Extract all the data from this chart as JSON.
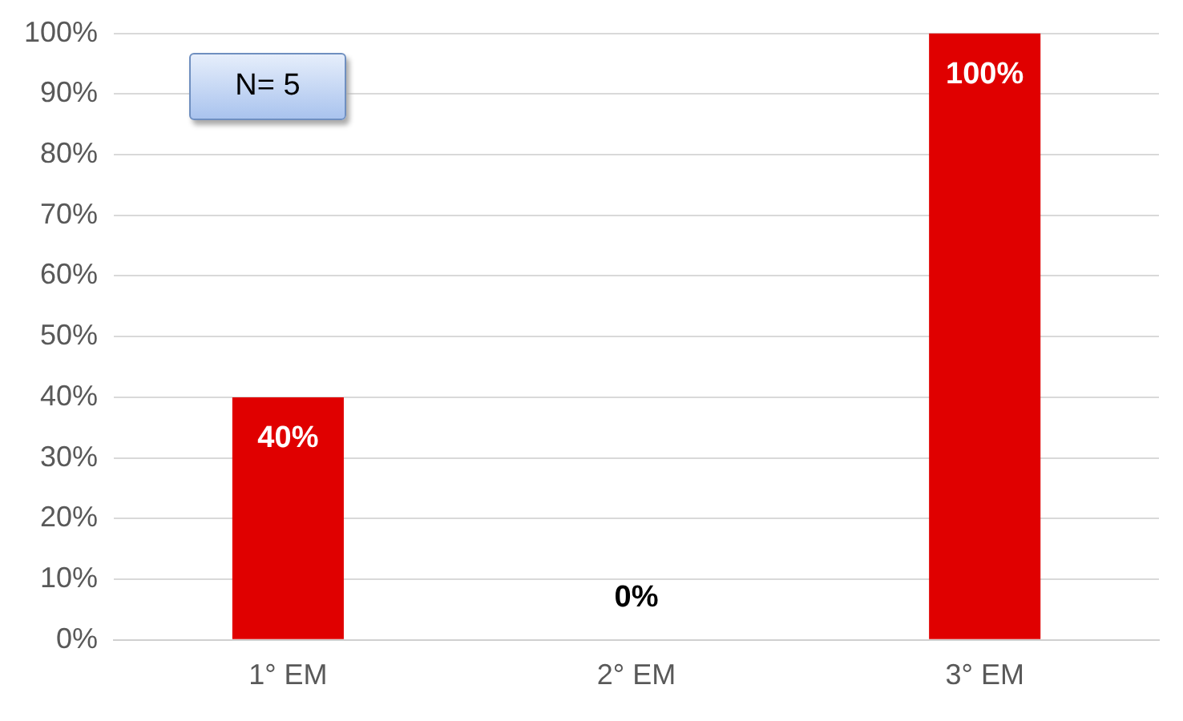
{
  "chart_data": {
    "type": "bar",
    "categories": [
      "1° EM",
      "2° EM",
      "3° EM"
    ],
    "values": [
      40,
      0,
      100
    ],
    "color": "#e00000",
    "value_labels": [
      "40%",
      "0%",
      "100%"
    ],
    "ylim": [
      0,
      100
    ],
    "yticks": [
      {
        "value": 0,
        "label": "0%"
      },
      {
        "value": 10,
        "label": "10%"
      },
      {
        "value": 20,
        "label": "20%"
      },
      {
        "value": 30,
        "label": "30%"
      },
      {
        "value": 40,
        "label": "40%"
      },
      {
        "value": 50,
        "label": "50%"
      },
      {
        "value": 60,
        "label": "60%"
      },
      {
        "value": 70,
        "label": "70%"
      },
      {
        "value": 80,
        "label": "80%"
      },
      {
        "value": 90,
        "label": "90%"
      },
      {
        "value": 100,
        "label": "100%"
      }
    ],
    "grid": "y",
    "annotations": [
      "N= 5"
    ]
  }
}
